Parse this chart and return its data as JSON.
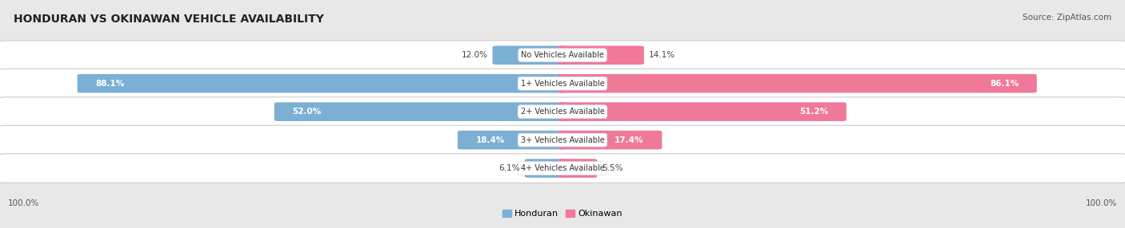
{
  "title": "HONDURAN VS OKINAWAN VEHICLE AVAILABILITY",
  "source": "Source: ZipAtlas.com",
  "categories": [
    "No Vehicles Available",
    "1+ Vehicles Available",
    "2+ Vehicles Available",
    "3+ Vehicles Available",
    "4+ Vehicles Available"
  ],
  "honduran_values": [
    12.0,
    88.1,
    52.0,
    18.4,
    6.1
  ],
  "okinawan_values": [
    14.1,
    86.1,
    51.2,
    17.4,
    5.5
  ],
  "honduran_color": "#7bafd4",
  "okinawan_color": "#f07898",
  "bg_color": "#e8e8e8",
  "row_bg_color": "#ffffff",
  "max_value": 100.0,
  "legend_honduran": "Honduran",
  "legend_okinawan": "Okinawan",
  "figsize": [
    14.06,
    2.86
  ],
  "dpi": 100
}
